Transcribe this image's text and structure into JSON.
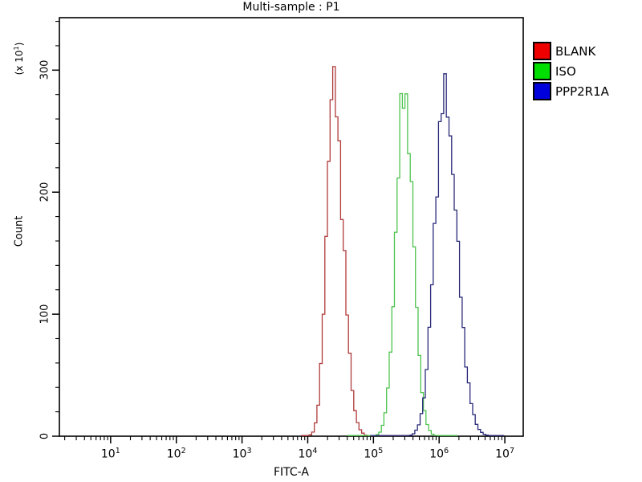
{
  "chart_data": {
    "type": "line",
    "subtype": "flow-cytometry-histogram",
    "title": "Multi-sample : P1",
    "xlabel": "FITC-A",
    "ylabel": "Count",
    "y_unit": {
      "prefix": "(x 10",
      "exp": "1",
      "suffix": ")"
    },
    "background_color": "#ffffff",
    "axis_color": "#000000",
    "x_axis": {
      "scale": "log10",
      "tick_exponents": [
        1,
        2,
        3,
        4,
        5,
        6,
        7
      ],
      "minor_mantissas": [
        2,
        3,
        4,
        5,
        6,
        7,
        8,
        9
      ],
      "lim_log10": [
        0.22,
        7.28
      ]
    },
    "y_axis": {
      "ticks": [
        0,
        100,
        200,
        300
      ],
      "minor_step": 20,
      "max": 343
    },
    "legend_position": "right-top",
    "series": [
      {
        "name": "BLANK",
        "swatch_color": "#ee0000",
        "curve_color": "#b03a3a",
        "peak_x": 23000,
        "peak_log10": 4.37,
        "peak_count": 287,
        "sigma_left_log10": 0.105,
        "sigma_right_log10": 0.145,
        "range_log10": [
          3.9,
          5.5
        ]
      },
      {
        "name": "ISO",
        "swatch_color": "#00dd00",
        "curve_color": "#4ec44e",
        "peak_x": 280000,
        "peak_log10": 5.45,
        "peak_count": 282,
        "sigma_left_log10": 0.125,
        "sigma_right_log10": 0.135,
        "range_log10": [
          4.6,
          6.3
        ]
      },
      {
        "name": "PPP2R1A",
        "swatch_color": "#0000dd",
        "curve_color": "#28287a",
        "peak_x": 1150000,
        "peak_log10": 6.06,
        "peak_count": 278,
        "sigma_left_log10": 0.15,
        "sigma_right_log10": 0.19,
        "range_log10": [
          4.95,
          7.0
        ]
      }
    ]
  }
}
